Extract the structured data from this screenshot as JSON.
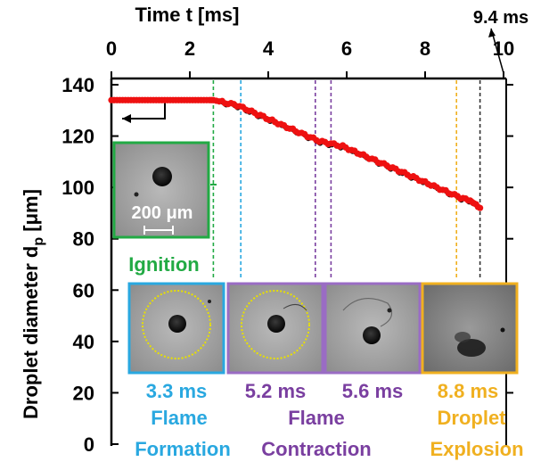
{
  "chart_data": {
    "type": "scatter",
    "title": "",
    "x_axis": {
      "label": "Time t [ms]",
      "position": "top",
      "range": [
        0,
        10
      ],
      "ticks": [
        0,
        2,
        4,
        6,
        8,
        10
      ],
      "tick_labels": [
        "0",
        "2",
        "4",
        "6",
        "8",
        "10"
      ]
    },
    "y_axis": {
      "label_main": "Droplet diameter d",
      "label_sub": "p",
      "label_unit": " [μm]",
      "range": [
        0,
        140
      ],
      "ticks": [
        0,
        20,
        40,
        60,
        80,
        100,
        120,
        140
      ],
      "tick_labels": [
        "0",
        "20",
        "40",
        "60",
        "80",
        "100",
        "120",
        "140"
      ]
    },
    "grid": false,
    "series": [
      {
        "color": "#ee1111",
        "marker": "filled-circle",
        "x": [
          0,
          0.5,
          1.0,
          1.5,
          2.0,
          2.5,
          2.6,
          2.9,
          3.2,
          3.5,
          3.8,
          4.1,
          4.4,
          4.7,
          5.0,
          5.3,
          5.6,
          5.9,
          6.2,
          6.5,
          6.8,
          7.1,
          7.4,
          7.7,
          8.0,
          8.3,
          8.6,
          8.9,
          9.1,
          9.2,
          9.3,
          9.4
        ],
        "y": [
          134,
          134,
          134,
          134,
          134,
          134,
          134,
          133,
          132,
          130,
          128,
          126,
          124,
          122,
          120,
          118,
          117,
          116,
          114,
          112,
          110,
          108,
          106,
          104,
          102,
          100,
          98,
          96,
          95,
          94,
          93,
          92
        ]
      }
    ],
    "event_lines": [
      {
        "t": 2.6,
        "color": "#22aa44"
      },
      {
        "t": 3.3,
        "color": "#29a8e0"
      },
      {
        "t": 5.2,
        "color": "#7a3fa0"
      },
      {
        "t": 5.6,
        "color": "#7a3fa0"
      },
      {
        "t": 8.8,
        "color": "#f0b020"
      },
      {
        "t": 9.4,
        "color": "#333333"
      }
    ],
    "annotations": {
      "end_time": "9.4 ms",
      "scale_bar": "200 μm",
      "ignition": {
        "label": "Ignition",
        "color": "#22aa44"
      },
      "events": [
        {
          "time": "3.3 ms",
          "line1": "Flame",
          "line2": "Formation",
          "color": "#29a8e0",
          "frame_color": "#29a8e0",
          "ring": true,
          "ring_color": "#e8e000"
        },
        {
          "time": "5.2 ms",
          "line1": "Flame",
          "line2": "Contraction",
          "color": "#7a3fa0",
          "frame_color": "#9a6cc4",
          "ring": true,
          "ring_color": "#e8e000"
        },
        {
          "time": "5.6 ms",
          "line1": "",
          "line2": "",
          "color": "#7a3fa0",
          "frame_color": "#9a6cc4",
          "ring": false
        },
        {
          "time": "8.8 ms",
          "line1": "Droplet",
          "line2": "Explosion",
          "color": "#f0b020",
          "frame_color": "#f0b020",
          "ring": false
        }
      ]
    }
  }
}
